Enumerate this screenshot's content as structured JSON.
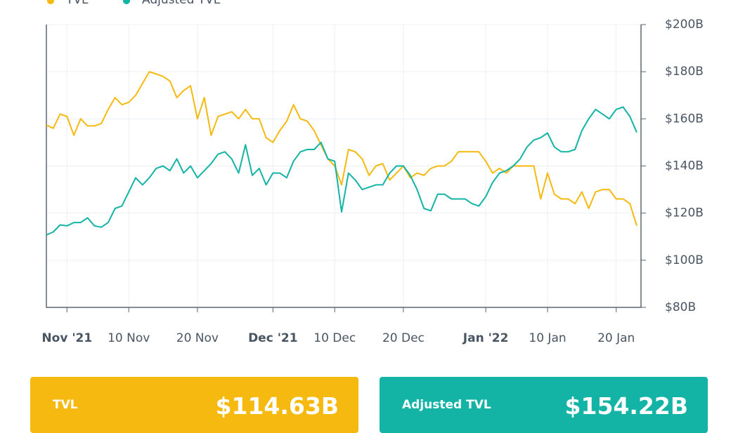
{
  "chart_data": {
    "type": "line",
    "x": [
      "2021-10-29",
      "2021-10-30",
      "2021-10-31",
      "2021-11-01",
      "2021-11-02",
      "2021-11-03",
      "2021-11-04",
      "2021-11-05",
      "2021-11-06",
      "2021-11-07",
      "2021-11-08",
      "2021-11-09",
      "2021-11-10",
      "2021-11-11",
      "2021-11-12",
      "2021-11-13",
      "2021-11-14",
      "2021-11-15",
      "2021-11-16",
      "2021-11-17",
      "2021-11-18",
      "2021-11-19",
      "2021-11-20",
      "2021-11-21",
      "2021-11-22",
      "2021-11-23",
      "2021-11-24",
      "2021-11-25",
      "2021-11-26",
      "2021-11-27",
      "2021-11-28",
      "2021-11-29",
      "2021-11-30",
      "2021-12-01",
      "2021-12-02",
      "2021-12-03",
      "2021-12-04",
      "2021-12-05",
      "2021-12-06",
      "2021-12-07",
      "2021-12-08",
      "2021-12-09",
      "2021-12-10",
      "2021-12-11",
      "2021-12-12",
      "2021-12-13",
      "2021-12-14",
      "2021-12-15",
      "2021-12-16",
      "2021-12-17",
      "2021-12-18",
      "2021-12-19",
      "2021-12-20",
      "2021-12-21",
      "2021-12-22",
      "2021-12-23",
      "2021-12-24",
      "2021-12-25",
      "2021-12-26",
      "2021-12-27",
      "2021-12-28",
      "2021-12-29",
      "2021-12-30",
      "2021-12-31",
      "2022-01-01",
      "2022-01-02",
      "2022-01-03",
      "2022-01-04",
      "2022-01-05",
      "2022-01-06",
      "2022-01-07",
      "2022-01-08",
      "2022-01-09",
      "2022-01-10",
      "2022-01-11",
      "2022-01-12",
      "2022-01-13",
      "2022-01-14",
      "2022-01-15",
      "2022-01-16",
      "2022-01-17",
      "2022-01-18",
      "2022-01-19",
      "2022-01-20",
      "2022-01-21",
      "2022-01-22",
      "2022-01-23"
    ],
    "series": [
      {
        "name": "TVL",
        "color": "#f5b90f",
        "values": [
          157.4,
          156,
          162,
          161,
          153,
          160,
          157,
          157,
          158,
          164,
          169,
          166,
          167,
          170,
          175,
          180,
          179,
          178,
          176,
          169,
          172,
          174,
          160,
          169,
          153,
          161,
          162,
          163,
          160,
          164,
          160,
          160,
          152,
          150,
          155,
          159,
          166,
          160,
          159,
          155,
          149,
          143,
          140,
          132,
          147,
          146,
          143,
          136,
          140,
          141,
          134,
          137,
          140,
          135,
          137,
          136,
          139,
          140,
          140,
          142,
          146,
          146,
          146,
          146,
          142,
          137,
          139,
          137,
          140,
          140,
          140,
          140,
          126,
          137,
          128,
          126,
          126,
          124,
          129,
          122,
          129,
          130,
          130,
          126,
          126,
          124,
          114.63
        ]
      },
      {
        "name": "Adjusted TVL",
        "color": "#13b3a6",
        "values": [
          110.7,
          112,
          115,
          114.6,
          116,
          116,
          118,
          114.6,
          114,
          116,
          122,
          123,
          129,
          135,
          132,
          135,
          139,
          140,
          138,
          143,
          137,
          140,
          135,
          138,
          141,
          145,
          146,
          143,
          137,
          149,
          136,
          139,
          132,
          137,
          137,
          135,
          142,
          146,
          147,
          147,
          150,
          143,
          142,
          120.5,
          137,
          134,
          130,
          131,
          132,
          132,
          137,
          140,
          140,
          136,
          130,
          122,
          121,
          128,
          128,
          126,
          126,
          126,
          124,
          123,
          127,
          133,
          137,
          138,
          140,
          143,
          148,
          151,
          152,
          154,
          148,
          146,
          146,
          147,
          155,
          160,
          164,
          162,
          160,
          164,
          165,
          161,
          154.22
        ]
      }
    ],
    "xlim": [
      "2021-10-29",
      "2022-01-23"
    ],
    "xticks": [
      {
        "value": "2021-11-01",
        "label": "Nov '21"
      },
      {
        "value": "2021-11-10",
        "label": "10 Nov"
      },
      {
        "value": "2021-11-20",
        "label": "20 Nov"
      },
      {
        "value": "2021-12-01",
        "label": "Dec '21"
      },
      {
        "value": "2021-12-10",
        "label": "10 Dec"
      },
      {
        "value": "2021-12-20",
        "label": "20 Dec"
      },
      {
        "value": "2022-01-01",
        "label": "Jan '22"
      },
      {
        "value": "2022-01-10",
        "label": "10 Jan"
      },
      {
        "value": "2022-01-20",
        "label": "20 Jan"
      }
    ],
    "ylim": [
      80,
      200
    ],
    "yticks": [
      {
        "value": 80,
        "label": "$80B"
      },
      {
        "value": 100,
        "label": "$100B"
      },
      {
        "value": 120,
        "label": "$120B"
      },
      {
        "value": 140,
        "label": "$140B"
      },
      {
        "value": 160,
        "label": "$160B"
      },
      {
        "value": 180,
        "label": "$180B"
      },
      {
        "value": 200,
        "label": "$200B"
      }
    ],
    "grid": true
  },
  "cards": [
    {
      "label": "TVL",
      "value": "$114.63B",
      "color": "#f5b90f"
    },
    {
      "label": "Adjusted TVL",
      "value": "$154.22B",
      "color": "#13b3a6"
    }
  ]
}
